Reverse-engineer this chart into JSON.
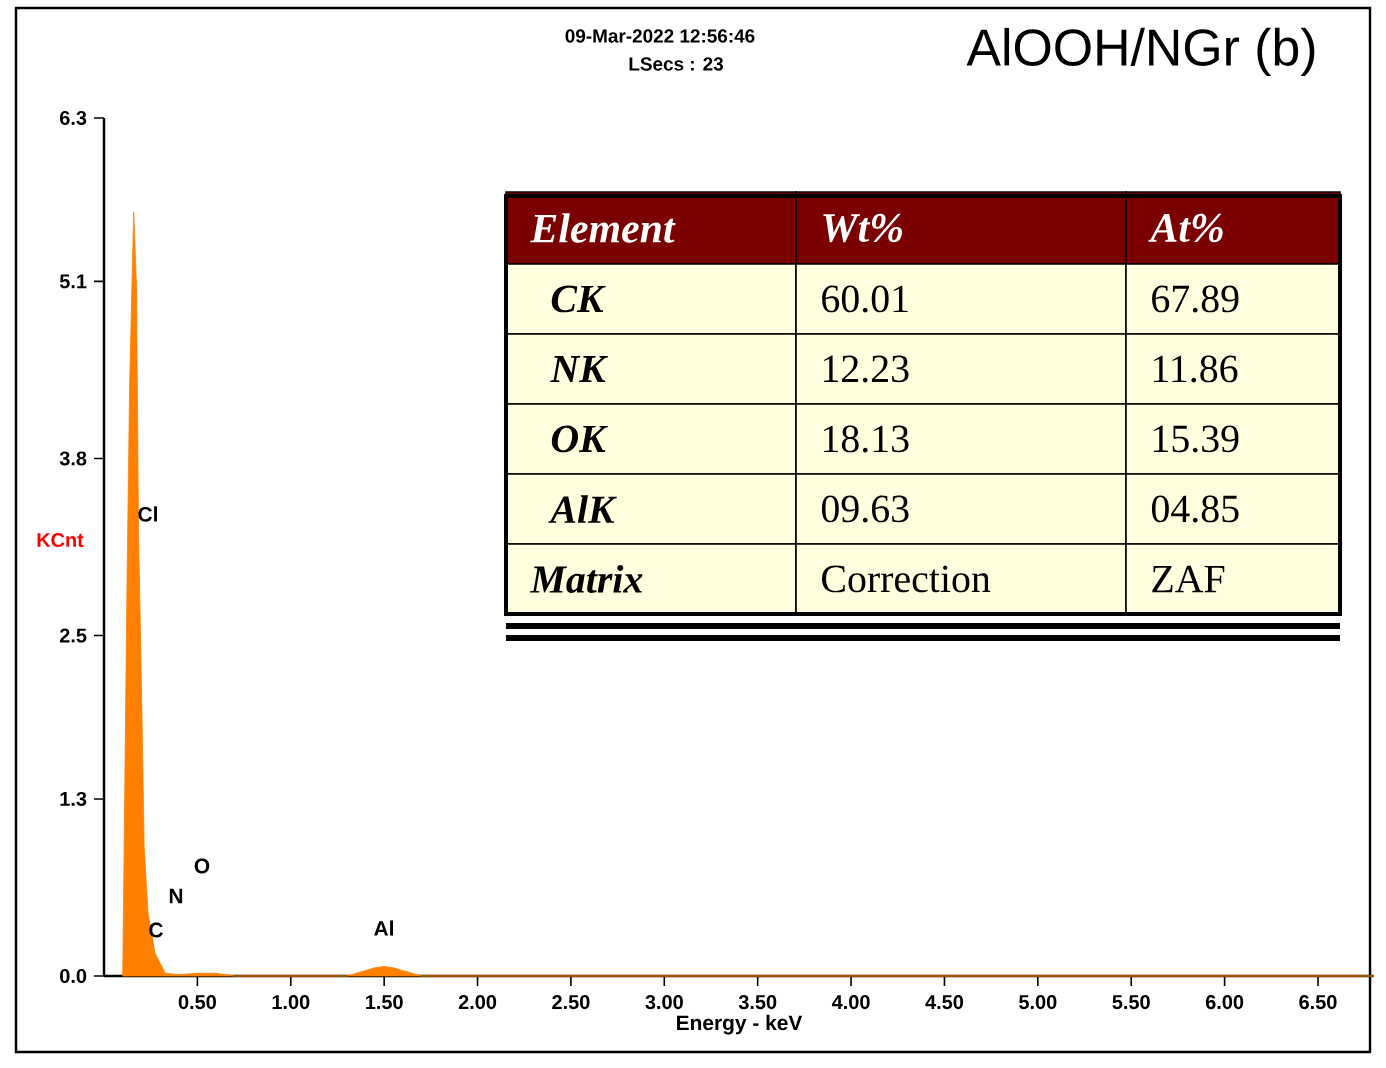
{
  "chart_data": {
    "type": "area",
    "title": "AlOOH/NGr (b)",
    "xlabel": "Energy - keV",
    "ylabel": "KCnt",
    "color": "#ff8000",
    "xlim": [
      0,
      6.8
    ],
    "ylim": [
      0,
      6.3
    ],
    "xticks": [
      {
        "value": 0.5,
        "label": "0.50"
      },
      {
        "value": 1.0,
        "label": "1.00"
      },
      {
        "value": 1.5,
        "label": "1.50"
      },
      {
        "value": 2.0,
        "label": "2.00"
      },
      {
        "value": 2.5,
        "label": "2.50"
      },
      {
        "value": 3.0,
        "label": "3.00"
      },
      {
        "value": 3.5,
        "label": "3.50"
      },
      {
        "value": 4.0,
        "label": "4.00"
      },
      {
        "value": 4.5,
        "label": "4.50"
      },
      {
        "value": 5.0,
        "label": "5.00"
      },
      {
        "value": 5.5,
        "label": "5.50"
      },
      {
        "value": 6.0,
        "label": "6.00"
      },
      {
        "value": 6.5,
        "label": "6.50"
      }
    ],
    "yticks": [
      {
        "value": 0,
        "label": "0.0"
      },
      1.3,
      2.5,
      3.8,
      5.1,
      6.3
    ],
    "x": [
      0.1,
      0.104,
      0.123,
      0.137,
      0.159,
      0.174,
      0.185,
      0.2,
      0.215,
      0.236,
      0.273,
      0.328,
      0.4,
      0.5,
      0.6,
      0.7,
      1.3,
      1.45,
      1.5,
      1.55,
      1.7,
      6.8
    ],
    "values": [
      0,
      0.46,
      2.86,
      4.33,
      5.61,
      5.07,
      3.25,
      2.18,
      0.95,
      0.46,
      0.17,
      0.02,
      0.01,
      0.02,
      0.02,
      0,
      0,
      0.06,
      0.07,
      0.06,
      0,
      0
    ],
    "annotations": [
      "09-Mar-2022 12:56:46",
      "LSecs :  23",
      "Cl",
      "C",
      "N",
      "O",
      "Al",
      "Element",
      "Wt%",
      "At%",
      "CK",
      "60.01",
      "67.89",
      "NK",
      "12.23",
      "11.86",
      "OK",
      "18.13",
      "15.39",
      "AlK",
      "09.63",
      "04.85",
      "Matrix",
      "Correction",
      "ZAF"
    ]
  }
}
